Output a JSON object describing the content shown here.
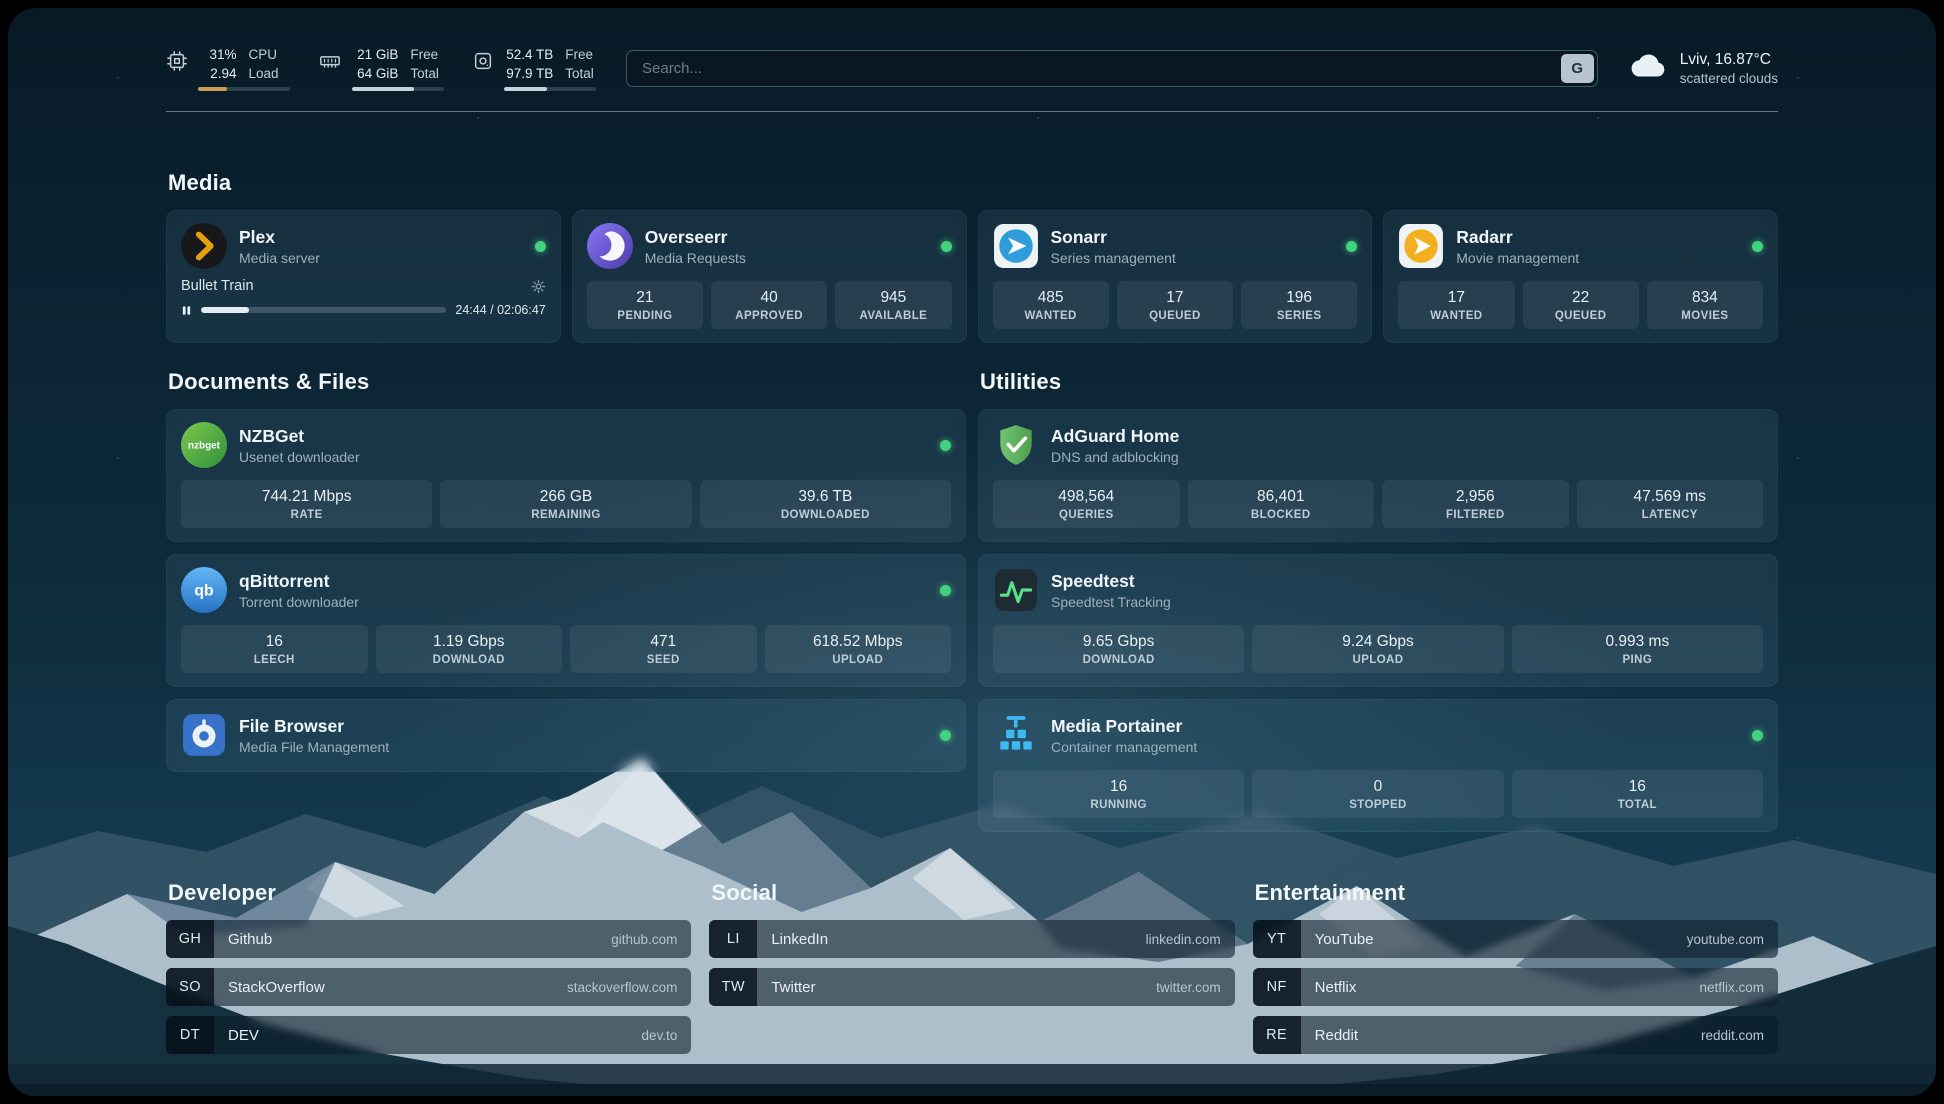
{
  "topbar": {
    "cpu": {
      "v1": "31%",
      "v2": "2.94",
      "l1": "CPU",
      "l2": "Load",
      "bar": {
        "width": "31%",
        "color": "#cf9a56"
      }
    },
    "ram": {
      "v1": "21 GiB",
      "v2": "64 GiB",
      "l1": "Free",
      "l2": "Total",
      "bar": {
        "width": "67%",
        "color": "#c9d4da"
      }
    },
    "disk": {
      "v1": "52.4 TB",
      "v2": "97.9 TB",
      "l1": "Free",
      "l2": "Total",
      "bar": {
        "width": "47%",
        "color": "#c9d4da"
      }
    },
    "search": {
      "placeholder": "Search...",
      "button_label": "G"
    },
    "weather": {
      "title": "Lviv, 16.87°C",
      "subtitle": "scattered clouds"
    }
  },
  "sections": {
    "media": {
      "title": "Media",
      "plex": {
        "name": "Plex",
        "subtitle": "Media server",
        "now_playing": "Bullet Train",
        "time": "24:44 / 02:06:47",
        "progress": {
          "width": "19.5%"
        }
      },
      "overseerr": {
        "name": "Overseerr",
        "subtitle": "Media Requests",
        "stats": [
          {
            "value": "21",
            "label": "PENDING"
          },
          {
            "value": "40",
            "label": "APPROVED"
          },
          {
            "value": "945",
            "label": "AVAILABLE"
          }
        ]
      },
      "sonarr": {
        "name": "Sonarr",
        "subtitle": "Series management",
        "stats": [
          {
            "value": "485",
            "label": "WANTED"
          },
          {
            "value": "17",
            "label": "QUEUED"
          },
          {
            "value": "196",
            "label": "SERIES"
          }
        ]
      },
      "radarr": {
        "name": "Radarr",
        "subtitle": "Movie management",
        "stats": [
          {
            "value": "17",
            "label": "WANTED"
          },
          {
            "value": "22",
            "label": "QUEUED"
          },
          {
            "value": "834",
            "label": "MOVIES"
          }
        ]
      }
    },
    "documents": {
      "title": "Documents & Files",
      "nzbget": {
        "name": "NZBGet",
        "subtitle": "Usenet downloader",
        "stats": [
          {
            "value": "744.21 Mbps",
            "label": "RATE"
          },
          {
            "value": "266 GB",
            "label": "REMAINING"
          },
          {
            "value": "39.6 TB",
            "label": "DOWNLOADED"
          }
        ]
      },
      "qbittorrent": {
        "name": "qBittorrent",
        "subtitle": "Torrent downloader",
        "stats": [
          {
            "value": "16",
            "label": "LEECH"
          },
          {
            "value": "1.19 Gbps",
            "label": "DOWNLOAD"
          },
          {
            "value": "471",
            "label": "SEED"
          },
          {
            "value": "618.52 Mbps",
            "label": "UPLOAD"
          }
        ]
      },
      "filebrowser": {
        "name": "File Browser",
        "subtitle": "Media File Management"
      }
    },
    "utilities": {
      "title": "Utilities",
      "adguard": {
        "name": "AdGuard Home",
        "subtitle": "DNS and adblocking",
        "stats": [
          {
            "value": "498,564",
            "label": "QUERIES"
          },
          {
            "value": "86,401",
            "label": "BLOCKED"
          },
          {
            "value": "2,956",
            "label": "FILTERED"
          },
          {
            "value": "47.569 ms",
            "label": "LATENCY"
          }
        ]
      },
      "speedtest": {
        "name": "Speedtest",
        "subtitle": "Speedtest Tracking",
        "stats": [
          {
            "value": "9.65 Gbps",
            "label": "DOWNLOAD"
          },
          {
            "value": "9.24 Gbps",
            "label": "UPLOAD"
          },
          {
            "value": "0.993 ms",
            "label": "PING"
          }
        ]
      },
      "portainer": {
        "name": "Media Portainer",
        "subtitle": "Container management",
        "stats": [
          {
            "value": "16",
            "label": "RUNNING"
          },
          {
            "value": "0",
            "label": "STOPPED"
          },
          {
            "value": "16",
            "label": "TOTAL"
          }
        ]
      }
    },
    "bookmarks": {
      "developer": {
        "title": "Developer",
        "items": [
          {
            "abbr": "GH",
            "name": "Github",
            "url": "github.com"
          },
          {
            "abbr": "SO",
            "name": "StackOverflow",
            "url": "stackoverflow.com"
          },
          {
            "abbr": "DT",
            "name": "DEV",
            "url": "dev.to"
          }
        ]
      },
      "social": {
        "title": "Social",
        "items": [
          {
            "abbr": "LI",
            "name": "LinkedIn",
            "url": "linkedin.com"
          },
          {
            "abbr": "TW",
            "name": "Twitter",
            "url": "twitter.com"
          }
        ]
      },
      "entertainment": {
        "title": "Entertainment",
        "items": [
          {
            "abbr": "YT",
            "name": "YouTube",
            "url": "youtube.com"
          },
          {
            "abbr": "NF",
            "name": "Netflix",
            "url": "netflix.com"
          },
          {
            "abbr": "RE",
            "name": "Reddit",
            "url": "reddit.com"
          }
        ]
      }
    }
  },
  "icons": [
    "cpu-icon",
    "ram-icon",
    "disk-icon",
    "cloud-icon",
    "plex-icon",
    "overseerr-icon",
    "sonarr-icon",
    "radarr-icon",
    "nzbget-icon",
    "qbittorrent-icon",
    "filebrowser-icon",
    "adguard-icon",
    "speedtest-icon",
    "portainer-icon",
    "gear-icon",
    "pause-icon"
  ],
  "colors": {
    "status_online": "#41d27f",
    "plex_amber": "#e5a00d",
    "cpu_bar": "#cf9a56"
  }
}
